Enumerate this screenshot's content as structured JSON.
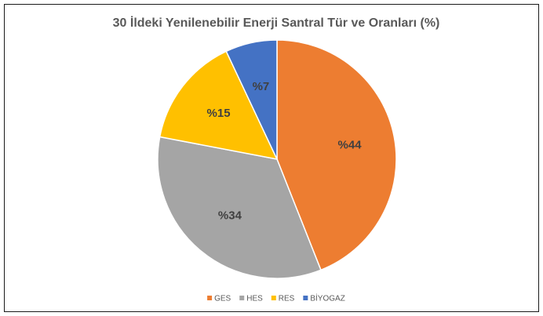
{
  "chart_data": {
    "type": "pie",
    "title": "30 İldeki Yenilenebilir Enerji Santral Tür ve Oranları (%)",
    "categories": [
      "GES",
      "HES",
      "RES",
      "BİYOGAZ"
    ],
    "values": [
      44,
      34,
      15,
      7
    ],
    "value_labels": [
      "%44",
      "%34",
      "%15",
      "%7"
    ],
    "colors": [
      "#ed7d31",
      "#a5a5a5",
      "#ffc000",
      "#4472c4"
    ],
    "legend": "bottom"
  }
}
